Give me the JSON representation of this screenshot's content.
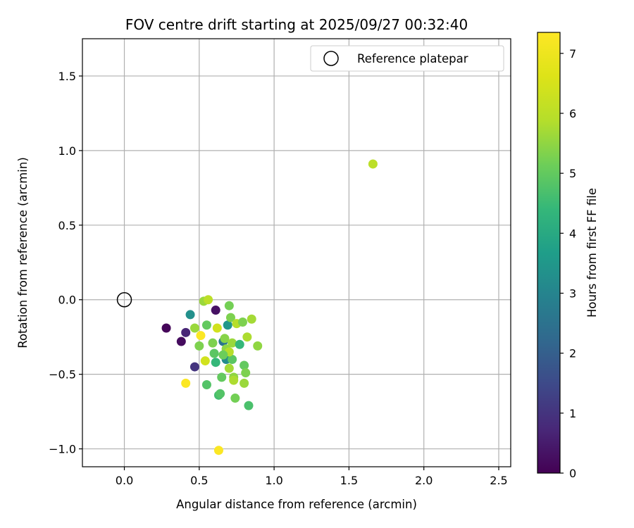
{
  "chart_data": {
    "type": "scatter",
    "title": "FOV centre drift starting at 2025/09/27 00:32:40",
    "xlabel": "Angular distance from reference (arcmin)",
    "ylabel": "Rotation from reference (arcmin)",
    "xlim": [
      -0.28,
      2.58
    ],
    "ylim": [
      -1.12,
      1.75
    ],
    "xticks": [
      0.0,
      0.5,
      1.0,
      1.5,
      2.0,
      2.5
    ],
    "xtick_labels": [
      "0.0",
      "0.5",
      "1.0",
      "1.5",
      "2.0",
      "2.5"
    ],
    "yticks": [
      -1.0,
      -0.5,
      0.0,
      0.5,
      1.0,
      1.5
    ],
    "ytick_labels": [
      "−1.0",
      "−0.5",
      "0.0",
      "0.5",
      "1.0",
      "1.5"
    ],
    "grid": true,
    "legend": {
      "position": "top-right",
      "entries": [
        "Reference platepar"
      ]
    },
    "reference_point": {
      "x": 0.0,
      "y": 0.0,
      "label": "Reference platepar"
    },
    "colorbar": {
      "label": "Hours from first FF file",
      "colormap": "viridis",
      "range": [
        0,
        7.35
      ],
      "ticks": [
        0,
        1,
        2,
        3,
        4,
        5,
        6,
        7
      ],
      "tick_labels": [
        "0",
        "1",
        "2",
        "3",
        "4",
        "5",
        "6",
        "7"
      ]
    },
    "points": [
      {
        "x": 0.28,
        "y": -0.19,
        "c": 0.1
      },
      {
        "x": 0.38,
        "y": -0.28,
        "c": 0.2
      },
      {
        "x": 0.41,
        "y": -0.22,
        "c": 0.7
      },
      {
        "x": 0.47,
        "y": -0.45,
        "c": 1.0
      },
      {
        "x": 0.61,
        "y": -0.07,
        "c": 0.3
      },
      {
        "x": 0.44,
        "y": -0.1,
        "c": 3.3
      },
      {
        "x": 0.66,
        "y": -0.28,
        "c": 2.6
      },
      {
        "x": 0.69,
        "y": -0.17,
        "c": 3.5
      },
      {
        "x": 0.68,
        "y": -0.4,
        "c": 3.2
      },
      {
        "x": 0.47,
        "y": -0.19,
        "c": 5.6
      },
      {
        "x": 0.5,
        "y": -0.31,
        "c": 5.3
      },
      {
        "x": 0.51,
        "y": -0.24,
        "c": 7.3
      },
      {
        "x": 0.54,
        "y": -0.41,
        "c": 6.4
      },
      {
        "x": 0.53,
        "y": -0.01,
        "c": 5.6
      },
      {
        "x": 0.56,
        "y": 0.0,
        "c": 6.0
      },
      {
        "x": 0.55,
        "y": -0.17,
        "c": 5.0
      },
      {
        "x": 0.55,
        "y": -0.57,
        "c": 4.8
      },
      {
        "x": 0.59,
        "y": -0.29,
        "c": 5.3
      },
      {
        "x": 0.6,
        "y": -0.36,
        "c": 4.9
      },
      {
        "x": 0.61,
        "y": -0.42,
        "c": 4.4
      },
      {
        "x": 0.62,
        "y": -0.19,
        "c": 6.4
      },
      {
        "x": 0.63,
        "y": -0.64,
        "c": 4.6
      },
      {
        "x": 0.64,
        "y": -0.63,
        "c": 4.8
      },
      {
        "x": 0.65,
        "y": -0.52,
        "c": 5.0
      },
      {
        "x": 0.67,
        "y": -0.26,
        "c": 5.4
      },
      {
        "x": 0.68,
        "y": -0.33,
        "c": 5.5
      },
      {
        "x": 0.7,
        "y": -0.46,
        "c": 5.7
      },
      {
        "x": 0.7,
        "y": -0.04,
        "c": 5.2
      },
      {
        "x": 0.71,
        "y": -0.12,
        "c": 5.3
      },
      {
        "x": 0.72,
        "y": -0.29,
        "c": 5.6
      },
      {
        "x": 0.72,
        "y": -0.4,
        "c": 4.9
      },
      {
        "x": 0.73,
        "y": -0.52,
        "c": 5.5
      },
      {
        "x": 0.74,
        "y": -0.66,
        "c": 5.2
      },
      {
        "x": 0.75,
        "y": -0.16,
        "c": 5.9
      },
      {
        "x": 0.77,
        "y": -0.3,
        "c": 4.4
      },
      {
        "x": 0.79,
        "y": -0.15,
        "c": 5.3
      },
      {
        "x": 0.8,
        "y": -0.44,
        "c": 5.0
      },
      {
        "x": 0.8,
        "y": -0.56,
        "c": 5.6
      },
      {
        "x": 0.81,
        "y": -0.49,
        "c": 5.3
      },
      {
        "x": 0.82,
        "y": -0.25,
        "c": 5.8
      },
      {
        "x": 0.83,
        "y": -0.71,
        "c": 4.7
      },
      {
        "x": 0.85,
        "y": -0.13,
        "c": 5.7
      },
      {
        "x": 0.89,
        "y": -0.31,
        "c": 5.5
      },
      {
        "x": 0.7,
        "y": -0.35,
        "c": 5.9
      },
      {
        "x": 0.73,
        "y": -0.54,
        "c": 5.8
      },
      {
        "x": 0.66,
        "y": -0.37,
        "c": 5.1
      },
      {
        "x": 0.41,
        "y": -0.56,
        "c": 7.3
      },
      {
        "x": 0.63,
        "y": -1.01,
        "c": 7.3
      },
      {
        "x": 1.66,
        "y": 0.91,
        "c": 6.0
      }
    ]
  }
}
